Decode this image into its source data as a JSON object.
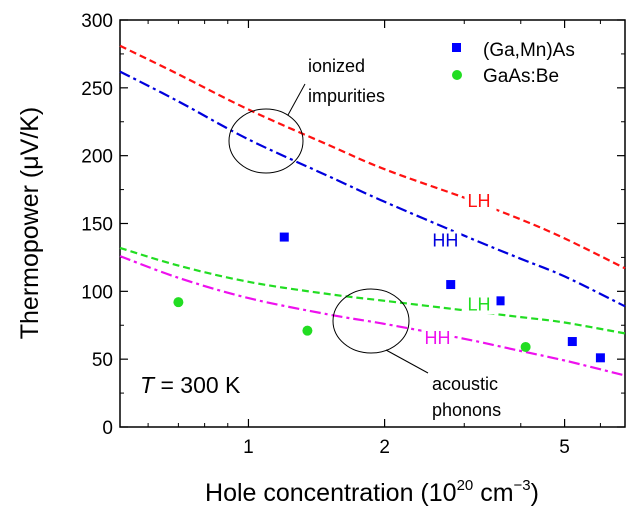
{
  "chart_data": {
    "type": "scatter",
    "xlabel": {
      "main": "Hole concentration (10",
      "sup1": "20",
      "mid": " cm",
      "sup2": "−3",
      "end": ")"
    },
    "ylabel": {
      "main": "Thermopower (",
      "mu": "μ",
      "end": "V/K)"
    },
    "x_scale": "log",
    "xlim": [
      0.52,
      6.8
    ],
    "ylim": [
      0,
      300
    ],
    "x_ticks": [
      {
        "v": 1,
        "label": "1"
      },
      {
        "v": 2,
        "label": "2"
      },
      {
        "v": 5,
        "label": "5"
      }
    ],
    "y_ticks": [
      {
        "v": 0,
        "label": "0"
      },
      {
        "v": 50,
        "label": "50"
      },
      {
        "v": 100,
        "label": "100"
      },
      {
        "v": 150,
        "label": "150"
      },
      {
        "v": 200,
        "label": "200"
      },
      {
        "v": 250,
        "label": "250"
      },
      {
        "v": 300,
        "label": "300"
      }
    ],
    "legend_position": "top-right",
    "series": [
      {
        "name": "(Ga,Mn)As",
        "kind": "points",
        "marker": "square",
        "color": "#0000ff",
        "x": [
          1.2,
          2.8,
          3.6,
          5.2,
          6.0
        ],
        "y": [
          140,
          105,
          93,
          63,
          51
        ]
      },
      {
        "name": "GaAs:Be",
        "kind": "points",
        "marker": "circle",
        "color": "#22dd22",
        "x": [
          0.7,
          1.35,
          4.1
        ],
        "y": [
          92,
          71,
          59
        ]
      },
      {
        "label": "LH",
        "kind": "curve",
        "style": "dash",
        "color": "#ff1111",
        "x": [
          0.52,
          0.7,
          1.0,
          1.5,
          2.0,
          3.0,
          4.0,
          5.0,
          6.8
        ],
        "y": [
          281,
          260,
          234,
          208,
          190,
          169,
          153,
          139,
          117
        ]
      },
      {
        "label": "HH",
        "kind": "curve",
        "style": "dashdot",
        "color": "#0000dd",
        "x": [
          0.52,
          0.7,
          1.0,
          1.5,
          2.0,
          3.0,
          4.0,
          5.0,
          6.8
        ],
        "y": [
          262,
          240,
          212,
          185,
          166,
          141,
          124,
          111,
          89
        ]
      },
      {
        "label": "LH",
        "kind": "curve",
        "style": "dash",
        "color": "#22dd22",
        "x": [
          0.52,
          0.7,
          1.0,
          1.5,
          2.0,
          3.0,
          4.0,
          5.0,
          6.8
        ],
        "y": [
          132,
          119,
          107,
          98,
          93,
          86,
          81,
          77,
          69
        ]
      },
      {
        "label": "HH",
        "kind": "curve",
        "style": "dashdot",
        "color": "#ee11ee",
        "x": [
          0.52,
          0.7,
          1.0,
          1.5,
          2.0,
          3.0,
          4.0,
          5.0,
          6.8
        ],
        "y": [
          126,
          110,
          95,
          83,
          76,
          65,
          56,
          49,
          38
        ]
      }
    ],
    "curve_labels": [
      {
        "text": "LH",
        "color": "#ff1111",
        "x": 3.05,
        "y": 162
      },
      {
        "text": "HH",
        "color": "#0000dd",
        "x": 2.55,
        "y": 133
      },
      {
        "text": "LH",
        "color": "#22dd22",
        "x": 3.05,
        "y": 86
      },
      {
        "text": "HH",
        "color": "#ee11ee",
        "x": 2.45,
        "y": 61
      }
    ],
    "annotations": {
      "ionized": {
        "line1": "ionized",
        "line2": "impurities"
      },
      "acoustic": {
        "line1": "acoustic",
        "line2": "phonons"
      }
    },
    "temperature": {
      "symbol": "T",
      "rest": " = 300 K"
    }
  }
}
